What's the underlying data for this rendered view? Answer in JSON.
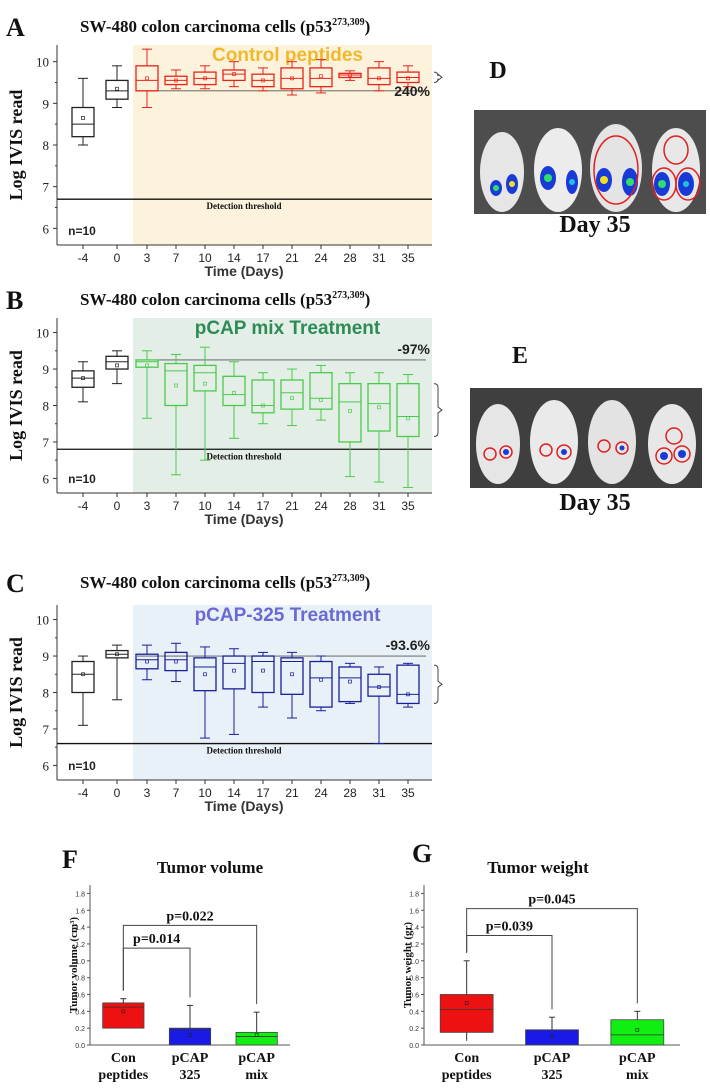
{
  "colors": {
    "control": "#e8231c",
    "pcap_mix": "#4cc94c",
    "pcap325": "#1a1f9a",
    "bg_control": "#fdf3dc",
    "bg_mix": "#e3efe6",
    "bg_325": "#e8f1f7",
    "text_control": "#f2b82a",
    "text_mix": "#2e8b57",
    "text_325": "#6a6ad4",
    "bar_control": "#ee1111",
    "bar_325": "#1a1ae6",
    "bar_mix": "#11ee11"
  },
  "photos": [
    {
      "letter": "D",
      "caption": "Day 35"
    },
    {
      "letter": "E",
      "caption": "Day 35"
    }
  ],
  "chart_data": [
    {
      "letter": "A",
      "type": "box",
      "title_prefix": "SW-480 colon carcinoma cells (p53",
      "title_sup": "273,309",
      "title_suffix": ")",
      "treatment_label": "Control peptides",
      "ylabel": "Log IVIS read",
      "xlabel": "Time (Days)",
      "categories": [
        "-4",
        "0",
        "3",
        "7",
        "10",
        "14",
        "17",
        "21",
        "24",
        "28",
        "31",
        "35"
      ],
      "yticks": [
        "6",
        "7",
        "8",
        "9",
        "10"
      ],
      "ylim": [
        5.6,
        10.4
      ],
      "threshold": 6.7,
      "threshold_label": "Detection threshold",
      "n_label": "n=10",
      "percent_label": "240%",
      "reference_line": 9.3,
      "boxes": [
        {
          "min": 8.0,
          "q1": 8.2,
          "median": 8.5,
          "q3": 8.9,
          "max": 9.6,
          "mean": 8.65
        },
        {
          "min": 8.9,
          "q1": 9.1,
          "median": 9.3,
          "q3": 9.55,
          "max": 9.9,
          "mean": 9.35
        },
        {
          "min": 8.9,
          "q1": 9.3,
          "median": 9.55,
          "q3": 9.9,
          "max": 10.3,
          "mean": 9.6
        },
        {
          "min": 9.35,
          "q1": 9.45,
          "median": 9.55,
          "q3": 9.65,
          "max": 9.8,
          "mean": 9.55
        },
        {
          "min": 9.35,
          "q1": 9.45,
          "median": 9.6,
          "q3": 9.75,
          "max": 9.9,
          "mean": 9.6
        },
        {
          "min": 9.4,
          "q1": 9.55,
          "median": 9.7,
          "q3": 9.8,
          "max": 10.0,
          "mean": 9.7
        },
        {
          "min": 9.3,
          "q1": 9.4,
          "median": 9.55,
          "q3": 9.7,
          "max": 9.85,
          "mean": 9.55
        },
        {
          "min": 9.2,
          "q1": 9.35,
          "median": 9.6,
          "q3": 9.85,
          "max": 10.0,
          "mean": 9.6
        },
        {
          "min": 9.25,
          "q1": 9.4,
          "median": 9.6,
          "q3": 9.85,
          "max": 10.05,
          "mean": 9.65
        },
        {
          "min": 9.55,
          "q1": 9.62,
          "median": 9.68,
          "q3": 9.72,
          "max": 9.78,
          "mean": 9.68
        },
        {
          "min": 9.3,
          "q1": 9.45,
          "median": 9.6,
          "q3": 9.85,
          "max": 10.0,
          "mean": 9.6
        },
        {
          "min": 9.4,
          "q1": 9.5,
          "median": 9.62,
          "q3": 9.75,
          "max": 9.9,
          "mean": 9.6
        }
      ]
    },
    {
      "letter": "B",
      "type": "box",
      "title_prefix": "SW-480 colon carcinoma cells (p53",
      "title_sup": "273,309",
      "title_suffix": ")",
      "treatment_label": "pCAP mix  Treatment",
      "ylabel": "Log IVIS read",
      "xlabel": "Time (Days)",
      "categories": [
        "-4",
        "0",
        "3",
        "7",
        "10",
        "14",
        "17",
        "21",
        "24",
        "28",
        "31",
        "35"
      ],
      "yticks": [
        "6",
        "7",
        "8",
        "9",
        "10"
      ],
      "ylim": [
        5.6,
        10.4
      ],
      "threshold": 6.8,
      "threshold_label": "Detection threshold",
      "n_label": "n=10",
      "percent_label": "-97%",
      "reference_line": 9.25,
      "boxes": [
        {
          "min": 8.1,
          "q1": 8.5,
          "median": 8.75,
          "q3": 8.95,
          "max": 9.2,
          "mean": 8.75
        },
        {
          "min": 8.6,
          "q1": 9.0,
          "median": 9.2,
          "q3": 9.35,
          "max": 9.5,
          "mean": 9.1
        },
        {
          "min": 7.65,
          "q1": 9.05,
          "median": 9.2,
          "q3": 9.25,
          "max": 9.5,
          "mean": 9.1
        },
        {
          "min": 6.1,
          "q1": 8.0,
          "median": 8.95,
          "q3": 9.15,
          "max": 9.4,
          "mean": 8.55
        },
        {
          "min": 6.5,
          "q1": 8.4,
          "median": 8.9,
          "q3": 9.1,
          "max": 9.6,
          "mean": 8.6
        },
        {
          "min": 7.1,
          "q1": 8.0,
          "median": 8.3,
          "q3": 8.8,
          "max": 9.2,
          "mean": 8.35
        },
        {
          "min": 7.5,
          "q1": 7.8,
          "median": 8.0,
          "q3": 8.7,
          "max": 8.9,
          "mean": 8.0
        },
        {
          "min": 7.45,
          "q1": 7.9,
          "median": 8.35,
          "q3": 8.7,
          "max": 9.0,
          "mean": 8.2
        },
        {
          "min": 7.6,
          "q1": 7.9,
          "median": 8.2,
          "q3": 8.9,
          "max": 9.1,
          "mean": 8.15
        },
        {
          "min": 6.05,
          "q1": 7.0,
          "median": 8.1,
          "q3": 8.6,
          "max": 8.9,
          "mean": 7.85
        },
        {
          "min": 5.9,
          "q1": 7.3,
          "median": 8.05,
          "q3": 8.6,
          "max": 8.9,
          "mean": 7.95
        },
        {
          "min": 5.75,
          "q1": 7.15,
          "median": 7.7,
          "q3": 8.6,
          "max": 8.85,
          "mean": 7.65
        }
      ]
    },
    {
      "letter": "C",
      "type": "box",
      "title_prefix": "SW-480 colon carcinoma cells (p53",
      "title_sup": "273,309",
      "title_suffix": ")",
      "treatment_label": "pCAP-325 Treatment",
      "ylabel": "Log IVIS read",
      "xlabel": "Time (Days)",
      "categories": [
        "-4",
        "0",
        "3",
        "7",
        "10",
        "14",
        "17",
        "21",
        "24",
        "28",
        "31",
        "35"
      ],
      "yticks": [
        "6",
        "7",
        "8",
        "9",
        "10"
      ],
      "ylim": [
        5.6,
        10.4
      ],
      "threshold": 6.6,
      "threshold_label": "Detection threshold",
      "n_label": "n=10",
      "percent_label": "-93.6%",
      "reference_line": 9.0,
      "boxes": [
        {
          "min": 7.1,
          "q1": 8.0,
          "median": 8.5,
          "q3": 8.85,
          "max": 9.0,
          "mean": 8.5
        },
        {
          "min": 7.8,
          "q1": 8.95,
          "median": 9.05,
          "q3": 9.15,
          "max": 9.3,
          "mean": 9.05
        },
        {
          "min": 8.35,
          "q1": 8.65,
          "median": 8.9,
          "q3": 9.05,
          "max": 9.3,
          "mean": 8.85
        },
        {
          "min": 8.3,
          "q1": 8.6,
          "median": 8.9,
          "q3": 9.1,
          "max": 9.35,
          "mean": 8.85
        },
        {
          "min": 6.75,
          "q1": 8.05,
          "median": 8.7,
          "q3": 8.95,
          "max": 9.25,
          "mean": 8.5
        },
        {
          "min": 6.85,
          "q1": 8.1,
          "median": 8.8,
          "q3": 9.0,
          "max": 9.2,
          "mean": 8.6
        },
        {
          "min": 7.6,
          "q1": 8.0,
          "median": 8.85,
          "q3": 9.0,
          "max": 9.1,
          "mean": 8.6
        },
        {
          "min": 7.3,
          "q1": 7.95,
          "median": 8.85,
          "q3": 8.95,
          "max": 9.1,
          "mean": 8.5
        },
        {
          "min": 7.5,
          "q1": 7.6,
          "median": 8.4,
          "q3": 8.85,
          "max": 9.0,
          "mean": 8.35
        },
        {
          "min": 7.7,
          "q1": 7.75,
          "median": 8.4,
          "q3": 8.7,
          "max": 8.8,
          "mean": 8.3
        },
        {
          "min": 6.6,
          "q1": 7.9,
          "median": 8.15,
          "q3": 8.5,
          "max": 8.7,
          "mean": 8.15
        },
        {
          "min": 7.6,
          "q1": 7.7,
          "median": 7.95,
          "q3": 8.75,
          "max": 8.8,
          "mean": 7.95
        }
      ]
    },
    {
      "letter": "F",
      "type": "bar",
      "title": "Tumor volume",
      "ylabel": "Tumor volume (cm³)",
      "yticks": [
        "0.0",
        "0.2",
        "0.4",
        "0.6",
        "0.8",
        "1.0",
        "1.2",
        "1.4",
        "1.6",
        "1.8"
      ],
      "ylim": [
        0,
        1.9
      ],
      "categories": [
        [
          "Con",
          "peptides"
        ],
        [
          "pCAP",
          "325"
        ],
        [
          "pCAP",
          "mix"
        ]
      ],
      "bars": [
        {
          "low": 0.2,
          "high": 0.5,
          "median": 0.45,
          "err_low": 0.2,
          "err_high": 0.55,
          "mean": 0.4
        },
        {
          "low": 0.0,
          "high": 0.2,
          "median": 0.18,
          "err_low": 0.0,
          "err_high": 0.47,
          "mean": 0.12
        },
        {
          "low": 0.0,
          "high": 0.15,
          "median": 0.1,
          "err_low": 0.0,
          "err_high": 0.39,
          "mean": 0.12
        }
      ],
      "comparisons": [
        {
          "from": 0,
          "to": 1,
          "label": "p=0.014",
          "level": 1.15
        },
        {
          "from": 0,
          "to": 2,
          "label": "p=0.022",
          "level": 1.42
        }
      ]
    },
    {
      "letter": "G",
      "type": "bar",
      "title": "Tumor weight",
      "ylabel": "Tumor weight (gr)",
      "yticks": [
        "0.0",
        "0.2",
        "0.4",
        "0.6",
        "0.8",
        "1.0",
        "1.2",
        "1.4",
        "1.6",
        "1.8"
      ],
      "ylim": [
        0,
        1.9
      ],
      "categories": [
        [
          "Con",
          "peptides"
        ],
        [
          "pCAP",
          "325"
        ],
        [
          "pCAP",
          "mix"
        ]
      ],
      "bars": [
        {
          "low": 0.15,
          "high": 0.6,
          "median": 0.42,
          "err_low": 0.05,
          "err_high": 1.0,
          "mean": 0.5
        },
        {
          "low": 0.0,
          "high": 0.18,
          "median": 0.18,
          "err_low": 0.0,
          "err_high": 0.33,
          "mean": 0.1
        },
        {
          "low": 0.0,
          "high": 0.3,
          "median": 0.12,
          "err_low": 0.0,
          "err_high": 0.4,
          "mean": 0.18
        }
      ],
      "comparisons": [
        {
          "from": 0,
          "to": 1,
          "label": "p=0.039",
          "level": 1.3
        },
        {
          "from": 0,
          "to": 2,
          "label": "p=0.045",
          "level": 1.62
        }
      ]
    }
  ]
}
